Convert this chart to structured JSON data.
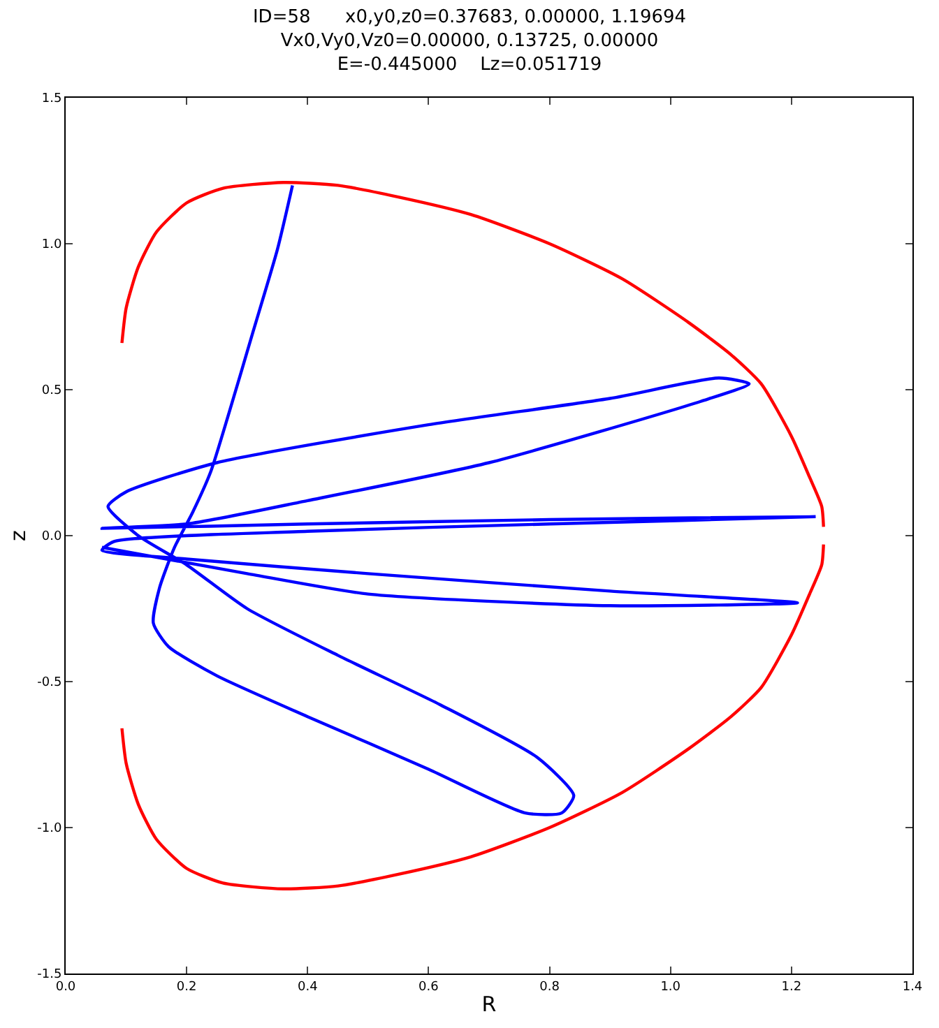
{
  "chart_data": {
    "type": "line",
    "title": "ID=58      x0,y0,z0=0.37683, 0.00000, 1.19694\nVx0,Vy0,Vz0=0.00000, 0.13725, 0.00000\nE=-0.445000    Lz=0.051719",
    "xlabel": "R",
    "ylabel": "z",
    "series": [
      {
        "color": "#ff0000",
        "x": [
          0.093,
          0.1,
          0.12,
          0.15,
          0.2,
          0.26,
          0.36,
          0.45,
          0.55,
          0.67,
          0.8,
          0.92,
          1.03,
          1.1,
          1.15,
          1.2,
          1.23,
          1.25,
          1.253
        ],
        "values": [
          0.66,
          0.78,
          0.92,
          1.04,
          1.14,
          1.19,
          1.21,
          1.2,
          1.16,
          1.1,
          1.0,
          0.88,
          0.73,
          0.62,
          0.52,
          0.34,
          0.2,
          0.1,
          0.03
        ]
      },
      {
        "color": "#ff0000",
        "x": [
          0.093,
          0.1,
          0.12,
          0.15,
          0.2,
          0.26,
          0.36,
          0.45,
          0.55,
          0.67,
          0.8,
          0.92,
          1.03,
          1.1,
          1.15,
          1.2,
          1.23,
          1.25,
          1.253
        ],
        "values": [
          -0.66,
          -0.78,
          -0.92,
          -1.04,
          -1.14,
          -1.19,
          -1.21,
          -1.2,
          -1.16,
          -1.1,
          -1.0,
          -0.88,
          -0.73,
          -0.62,
          -0.52,
          -0.34,
          -0.2,
          -0.1,
          -0.03
        ]
      },
      {
        "color": "#0000ff",
        "x": [
          0.375,
          0.35,
          0.31,
          0.27,
          0.24,
          0.21,
          0.18,
          0.155,
          0.145,
          0.17,
          0.25,
          0.4,
          0.6,
          0.76,
          0.82,
          0.84,
          0.78,
          0.62,
          0.45,
          0.3,
          0.2,
          0.12,
          0.07,
          0.1,
          0.25,
          0.6,
          0.9,
          1.08,
          1.13,
          1.05,
          0.7,
          0.4,
          0.2,
          0.06,
          0.4,
          0.8,
          1.24,
          0.8,
          0.4,
          0.08,
          0.06,
          0.2,
          0.5,
          0.9,
          1.21,
          0.9,
          0.5,
          0.3,
          0.06
        ],
        "values": [
          1.2,
          0.98,
          0.7,
          0.42,
          0.22,
          0.08,
          -0.04,
          -0.18,
          -0.3,
          -0.38,
          -0.48,
          -0.62,
          -0.8,
          -0.95,
          -0.95,
          -0.89,
          -0.76,
          -0.58,
          -0.41,
          -0.25,
          -0.1,
          0.0,
          0.1,
          0.15,
          0.25,
          0.38,
          0.47,
          0.54,
          0.52,
          0.46,
          0.25,
          0.12,
          0.04,
          0.025,
          0.04,
          0.055,
          0.065,
          0.04,
          0.015,
          -0.02,
          -0.05,
          -0.08,
          -0.13,
          -0.19,
          -0.23,
          -0.24,
          -0.2,
          -0.13,
          -0.04
        ]
      }
    ],
    "xlim": [
      0,
      1.4
    ],
    "xticks": [
      {
        "value": 0,
        "label": "0.0"
      },
      {
        "value": 0.2,
        "label": "0.2"
      },
      {
        "value": 0.4,
        "label": "0.4"
      },
      {
        "value": 0.6,
        "label": "0.6"
      },
      {
        "value": 0.8,
        "label": "0.8"
      },
      {
        "value": 1.0,
        "label": "1.0"
      },
      {
        "value": 1.2,
        "label": "1.2"
      },
      {
        "value": 1.4,
        "label": "1.4"
      }
    ],
    "ylim": [
      -1.5,
      1.5
    ],
    "yticks": [
      {
        "value": -1.5,
        "label": "-1.5"
      },
      {
        "value": -1.0,
        "label": "-1.0"
      },
      {
        "value": -0.5,
        "label": "-0.5"
      },
      {
        "value": 0,
        "label": "0.0"
      },
      {
        "value": 0.5,
        "label": "0.5"
      },
      {
        "value": 1.0,
        "label": "1.0"
      },
      {
        "value": 1.5,
        "label": "1.5"
      }
    ],
    "marker": "none",
    "line_style": "solid"
  }
}
